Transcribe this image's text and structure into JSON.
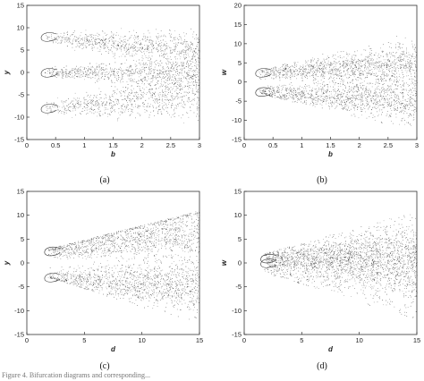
{
  "chart_data": [
    {
      "type": "scatter",
      "panel_label": "(a)",
      "xlabel": "b",
      "ylabel": "y",
      "xlim": [
        0,
        3
      ],
      "ylim": [
        -15,
        15
      ],
      "xticks": [
        "0",
        "0.5",
        "1",
        "1.5",
        "2",
        "2.5",
        "3"
      ],
      "yticks": [
        "-15",
        "-10",
        "-5",
        "0",
        "5",
        "10",
        "15"
      ],
      "xtick_values": [
        0,
        0.5,
        1,
        1.5,
        2,
        2.5,
        3
      ],
      "ytick_values": [
        -15,
        -10,
        -5,
        0,
        5,
        10,
        15
      ],
      "onset": 0.3,
      "bands": [
        {
          "center": 8,
          "end_center": 5,
          "spread": 3.5
        },
        {
          "center": 0,
          "end_center": 0,
          "spread": 3
        },
        {
          "center": -8,
          "end_center": -4.5,
          "spread": 4.5
        }
      ],
      "envelope": {
        "upper": [
          10,
          10
        ],
        "lower": [
          -10,
          -14
        ]
      }
    },
    {
      "type": "scatter",
      "panel_label": "(b)",
      "xlabel": "b",
      "ylabel": "w",
      "xlim": [
        0,
        3
      ],
      "ylim": [
        -15,
        20
      ],
      "xticks": [
        "0",
        "0.5",
        "1",
        "1.5",
        "2",
        "2.5",
        "3"
      ],
      "yticks": [
        "-15",
        "-10",
        "-5",
        "0",
        "5",
        "10",
        "15",
        "20"
      ],
      "xtick_values": [
        0,
        0.5,
        1,
        1.5,
        2,
        2.5,
        3
      ],
      "ytick_values": [
        -15,
        -10,
        -5,
        0,
        5,
        10,
        15,
        20
      ],
      "onset": 0.25,
      "bands": [
        {
          "center": 2.5,
          "end_center": 5,
          "spread": 5
        },
        {
          "center": -2.5,
          "end_center": -5,
          "spread": 5
        }
      ],
      "envelope": {
        "upper": [
          3,
          15
        ],
        "lower": [
          -3,
          -13
        ]
      }
    },
    {
      "type": "scatter",
      "panel_label": "(c)",
      "xlabel": "d",
      "ylabel": "y",
      "xlim": [
        0,
        15
      ],
      "ylim": [
        -15,
        15
      ],
      "xticks": [
        "0",
        "5",
        "10",
        "15"
      ],
      "yticks": [
        "-15",
        "-10",
        "-5",
        "0",
        "5",
        "10",
        "15"
      ],
      "xtick_values": [
        0,
        5,
        10,
        15
      ],
      "ytick_values": [
        -15,
        -10,
        -5,
        0,
        5,
        10,
        15
      ],
      "onset": 1.8,
      "bands": [
        {
          "center": 2.5,
          "end_center": 7,
          "spread": 5
        },
        {
          "center": -3,
          "end_center": -5,
          "spread": 5
        }
      ],
      "envelope": {
        "upper": [
          3,
          11
        ],
        "lower": [
          -3,
          -13
        ]
      }
    },
    {
      "type": "scatter",
      "panel_label": "(d)",
      "xlabel": "d",
      "ylabel": "w",
      "xlim": [
        0,
        15
      ],
      "ylim": [
        -15,
        15
      ],
      "xticks": [
        "0",
        "5",
        "10",
        "15"
      ],
      "yticks": [
        "-15",
        "-10",
        "-5",
        "0",
        "5",
        "10",
        "15"
      ],
      "xtick_values": [
        0,
        5,
        10,
        15
      ],
      "ytick_values": [
        -15,
        -10,
        -5,
        0,
        5,
        10,
        15
      ],
      "onset": 1.7,
      "bands": [
        {
          "center": 1,
          "end_center": 1.5,
          "spread": 6
        },
        {
          "center": 0,
          "end_center": -1,
          "spread": 8
        }
      ],
      "envelope": {
        "upper": [
          2,
          11
        ],
        "lower": [
          -2,
          -12
        ]
      }
    }
  ],
  "caption": "Figure 4. Bifurcation diagrams and corresponding...",
  "colors": {
    "points": "#2a2a2a",
    "axes": "#333333",
    "caption": "#777777"
  }
}
